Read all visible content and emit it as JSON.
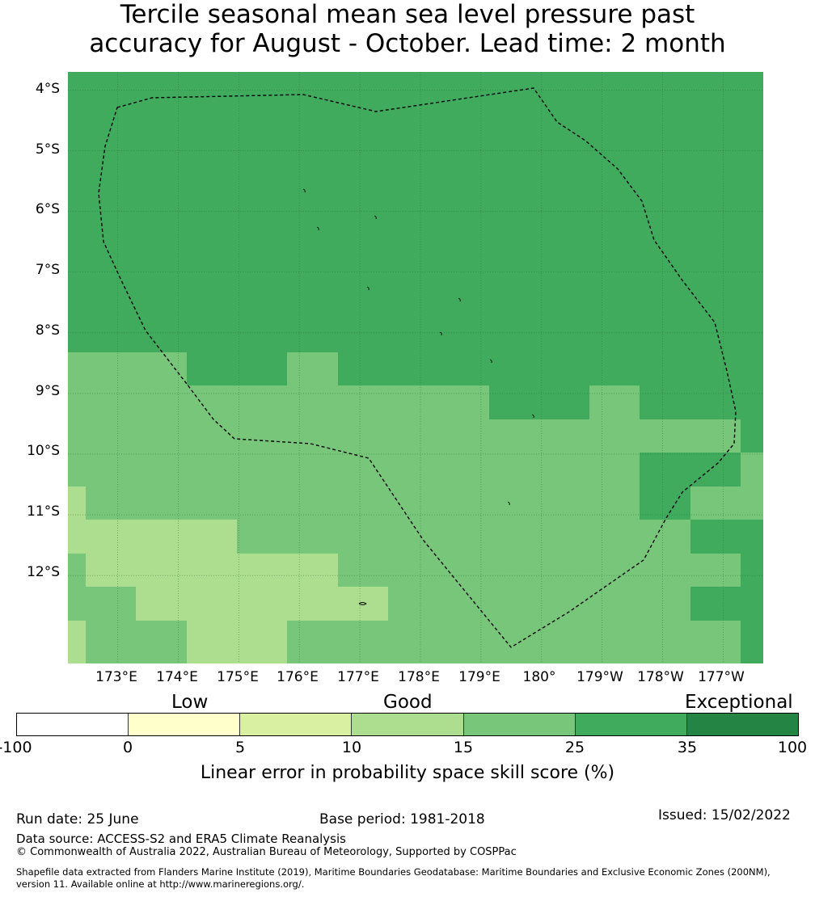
{
  "title": {
    "line1": "Tercile seasonal mean sea level pressure past",
    "line2": "accuracy for August - October. Lead time: 2 month"
  },
  "map": {
    "lat_labels": [
      "4°S",
      "5°S",
      "6°S",
      "7°S",
      "8°S",
      "9°S",
      "10°S",
      "11°S",
      "12°S"
    ],
    "lon_labels": [
      "173°E",
      "174°E",
      "175°E",
      "176°E",
      "177°E",
      "178°E",
      "179°E",
      "180°",
      "179°W",
      "178°W",
      "177°W"
    ],
    "lat_range": [
      3.7,
      13.45
    ],
    "lon_range": [
      172.18,
      183.66
    ],
    "grid_color": "#1e6b34",
    "boundary_color": "#000000",
    "legend_colors": {
      "band_25_35": "#41ab5d",
      "band_15_25": "#78c679",
      "band_10_15": "#addd8e"
    },
    "cells_note_rows": "lat-rows from 3.7S stepping ~0.55 deg; values are colour bands (25-35, 15-25, 10-15)"
  },
  "colorbar": {
    "category_labels": [
      "Low",
      "Good",
      "Exceptional"
    ],
    "ticks": [
      "-100",
      "0",
      "5",
      "10",
      "15",
      "25",
      "35",
      "100"
    ],
    "colors": [
      "#ffffff",
      "#ffffcc",
      "#d9f0a3",
      "#addd8e",
      "#78c679",
      "#41ab5d",
      "#238443"
    ],
    "label": "Linear error in probability space skill score (%)"
  },
  "footer": {
    "run_date": "Run date: 25 June",
    "base_period": "Base period: 1981-2018",
    "issued": "Issued: 15/02/2022",
    "data_source": "Data source: ACCESS-S2 and ERA5 Climate Reanalysis",
    "copyright": "© Commonwealth of Australia 2022, Australian Bureau of Meteorology, Supported by COSPPac",
    "shapefile_line1": "Shapefile data extracted from Flanders Marine Institute (2019), Maritime Boundaries Geodatabase: Maritime Boundaries and Exclusive Economic Zones (200NM),",
    "shapefile_line2": "version 11. Available online at http://www.marineregions.org/."
  }
}
